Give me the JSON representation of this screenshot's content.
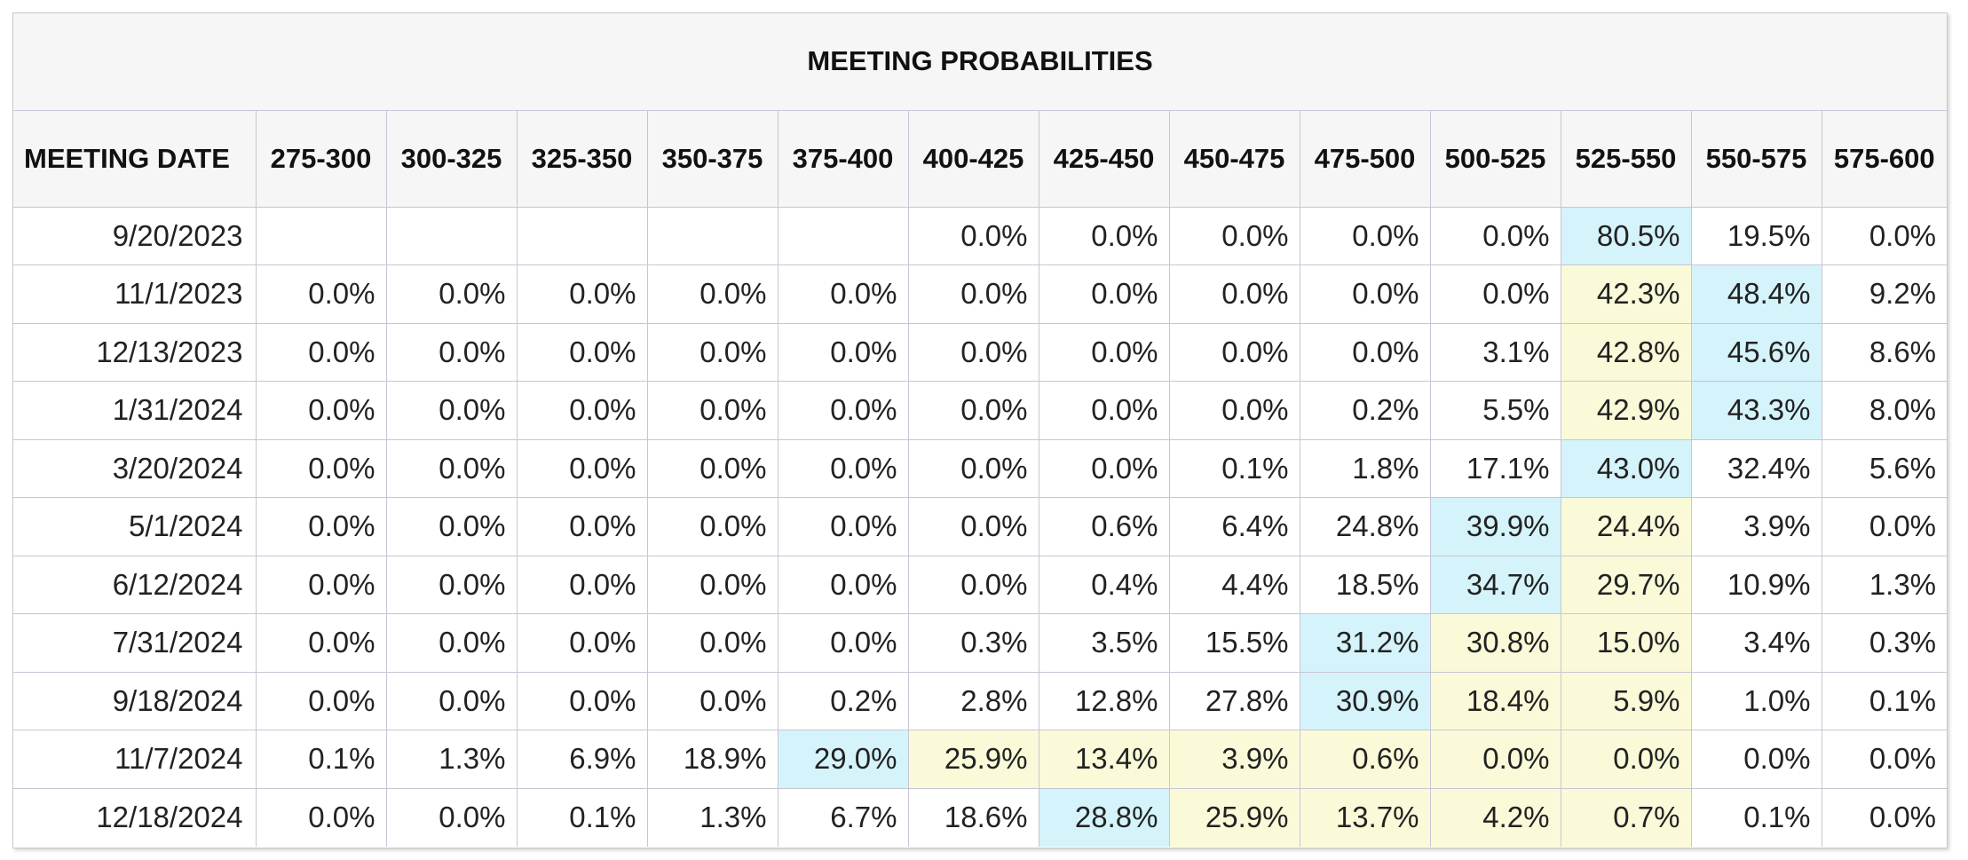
{
  "chart_data": {
    "type": "table",
    "title": "MEETING PROBABILITIES",
    "first_column_header": "MEETING DATE",
    "columns": [
      "275-300",
      "300-325",
      "325-350",
      "350-375",
      "375-400",
      "400-425",
      "425-450",
      "450-475",
      "475-500",
      "500-525",
      "525-550",
      "550-575",
      "575-600"
    ],
    "highlight_colors": {
      "blue": "#d5f3fb",
      "yellow": "#fafad9"
    },
    "rows": [
      {
        "date": "9/20/2023",
        "values": [
          "",
          "",
          "",
          "",
          "",
          "0.0%",
          "0.0%",
          "0.0%",
          "0.0%",
          "0.0%",
          "80.5%",
          "19.5%",
          "0.0%"
        ],
        "blue": [
          10
        ],
        "yellow": []
      },
      {
        "date": "11/1/2023",
        "values": [
          "0.0%",
          "0.0%",
          "0.0%",
          "0.0%",
          "0.0%",
          "0.0%",
          "0.0%",
          "0.0%",
          "0.0%",
          "0.0%",
          "42.3%",
          "48.4%",
          "9.2%"
        ],
        "blue": [
          11
        ],
        "yellow": [
          10
        ]
      },
      {
        "date": "12/13/2023",
        "values": [
          "0.0%",
          "0.0%",
          "0.0%",
          "0.0%",
          "0.0%",
          "0.0%",
          "0.0%",
          "0.0%",
          "0.0%",
          "3.1%",
          "42.8%",
          "45.6%",
          "8.6%"
        ],
        "blue": [
          11
        ],
        "yellow": [
          10
        ]
      },
      {
        "date": "1/31/2024",
        "values": [
          "0.0%",
          "0.0%",
          "0.0%",
          "0.0%",
          "0.0%",
          "0.0%",
          "0.0%",
          "0.0%",
          "0.2%",
          "5.5%",
          "42.9%",
          "43.3%",
          "8.0%"
        ],
        "blue": [
          11
        ],
        "yellow": [
          10
        ]
      },
      {
        "date": "3/20/2024",
        "values": [
          "0.0%",
          "0.0%",
          "0.0%",
          "0.0%",
          "0.0%",
          "0.0%",
          "0.0%",
          "0.1%",
          "1.8%",
          "17.1%",
          "43.0%",
          "32.4%",
          "5.6%"
        ],
        "blue": [
          10
        ],
        "yellow": []
      },
      {
        "date": "5/1/2024",
        "values": [
          "0.0%",
          "0.0%",
          "0.0%",
          "0.0%",
          "0.0%",
          "0.0%",
          "0.6%",
          "6.4%",
          "24.8%",
          "39.9%",
          "24.4%",
          "3.9%",
          "0.0%"
        ],
        "blue": [
          9
        ],
        "yellow": [
          10
        ]
      },
      {
        "date": "6/12/2024",
        "values": [
          "0.0%",
          "0.0%",
          "0.0%",
          "0.0%",
          "0.0%",
          "0.0%",
          "0.4%",
          "4.4%",
          "18.5%",
          "34.7%",
          "29.7%",
          "10.9%",
          "1.3%"
        ],
        "blue": [
          9
        ],
        "yellow": [
          10
        ]
      },
      {
        "date": "7/31/2024",
        "values": [
          "0.0%",
          "0.0%",
          "0.0%",
          "0.0%",
          "0.0%",
          "0.3%",
          "3.5%",
          "15.5%",
          "31.2%",
          "30.8%",
          "15.0%",
          "3.4%",
          "0.3%"
        ],
        "blue": [
          8
        ],
        "yellow": [
          9,
          10
        ]
      },
      {
        "date": "9/18/2024",
        "values": [
          "0.0%",
          "0.0%",
          "0.0%",
          "0.0%",
          "0.2%",
          "2.8%",
          "12.8%",
          "27.8%",
          "30.9%",
          "18.4%",
          "5.9%",
          "1.0%",
          "0.1%"
        ],
        "blue": [
          8
        ],
        "yellow": [
          9,
          10
        ]
      },
      {
        "date": "11/7/2024",
        "values": [
          "0.1%",
          "1.3%",
          "6.9%",
          "18.9%",
          "29.0%",
          "25.9%",
          "13.4%",
          "3.9%",
          "0.6%",
          "0.0%",
          "0.0%",
          "0.0%",
          "0.0%"
        ],
        "blue": [
          4
        ],
        "yellow": [
          5,
          6,
          7,
          8,
          9,
          10
        ]
      },
      {
        "date": "12/18/2024",
        "values": [
          "0.0%",
          "0.0%",
          "0.1%",
          "1.3%",
          "6.7%",
          "18.6%",
          "28.8%",
          "25.9%",
          "13.7%",
          "4.2%",
          "0.7%",
          "0.1%",
          "0.0%"
        ],
        "blue": [
          6
        ],
        "yellow": [
          7,
          8,
          9,
          10
        ]
      }
    ]
  }
}
